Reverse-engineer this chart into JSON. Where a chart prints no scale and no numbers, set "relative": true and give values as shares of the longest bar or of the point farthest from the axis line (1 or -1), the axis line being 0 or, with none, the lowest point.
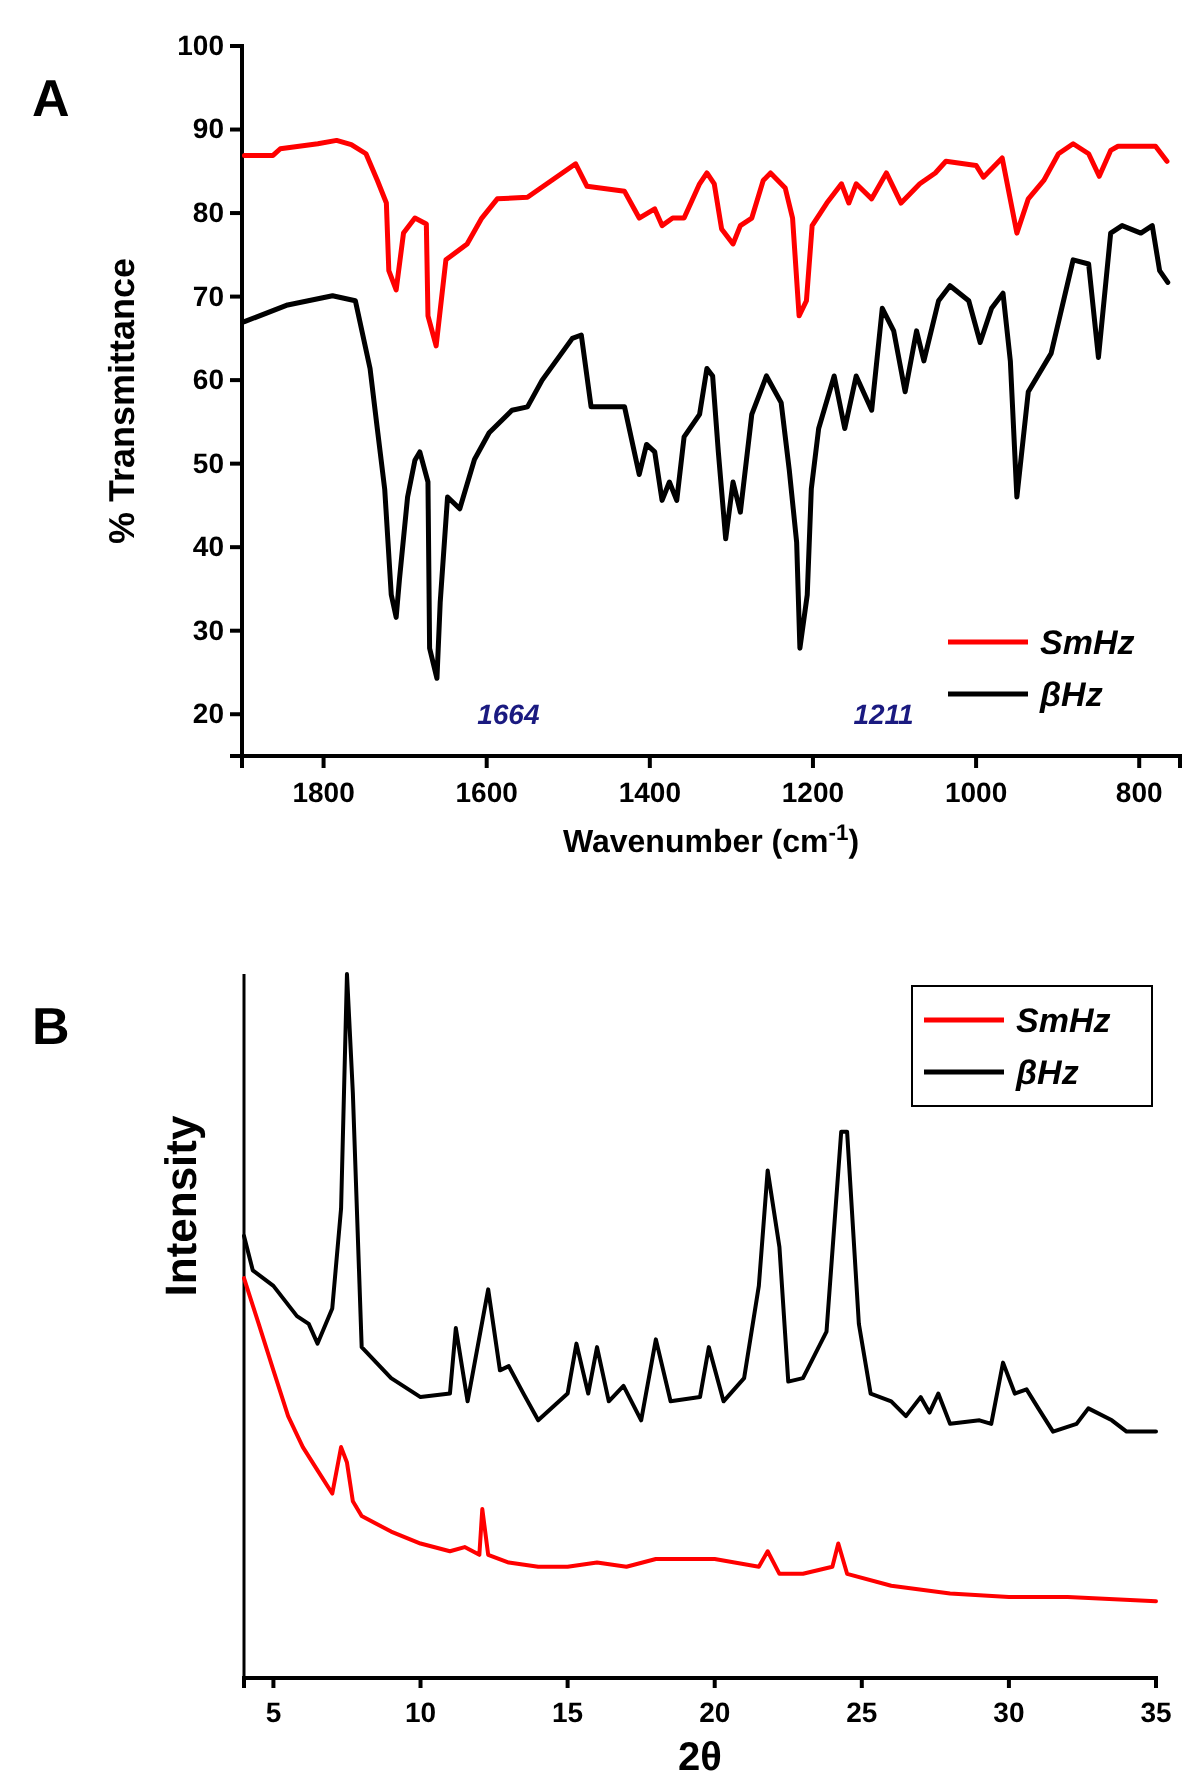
{
  "chart_data": [
    {
      "type": "line",
      "title": "A",
      "xlabel": "Wavenumber (cm$^{-1}$)",
      "ylabel": "% Transmittance",
      "xlim": [
        1900,
        750
      ],
      "xticks": [
        1800,
        1600,
        1400,
        1200,
        1000,
        800
      ],
      "ylim": [
        15,
        100
      ],
      "yticks": [
        20,
        30,
        40,
        50,
        60,
        70,
        80,
        90,
        100
      ],
      "legend": "bottom right",
      "series": [
        {
          "name": "SmHz",
          "color": "#ff0000",
          "x": [
            1897,
            1862,
            1853,
            1807,
            1784,
            1766,
            1748,
            1734,
            1723,
            1720,
            1711,
            1702,
            1688,
            1674,
            1672,
            1662,
            1650,
            1624,
            1606,
            1587,
            1550,
            1491,
            1477,
            1431,
            1413,
            1394,
            1385,
            1372,
            1358,
            1339,
            1330,
            1321,
            1312,
            1298,
            1289,
            1275,
            1261,
            1252,
            1234,
            1225,
            1217,
            1208,
            1201,
            1183,
            1165,
            1156,
            1147,
            1128,
            1110,
            1092,
            1069,
            1050,
            1037,
            1000,
            991,
            968,
            950,
            936,
            917,
            899,
            881,
            862,
            849,
            835,
            826,
            780,
            766
          ],
          "values": [
            86.9,
            86.9,
            87.7,
            88.3,
            88.7,
            88.2,
            87.1,
            83.9,
            81.2,
            73.1,
            70.8,
            77.6,
            79.4,
            78.7,
            67.7,
            64.1,
            74.4,
            76.3,
            79.4,
            81.7,
            81.9,
            85.9,
            83.2,
            82.6,
            79.4,
            80.5,
            78.5,
            79.4,
            79.4,
            83.5,
            84.8,
            83.5,
            78.1,
            76.3,
            78.5,
            79.4,
            83.9,
            84.8,
            83.0,
            79.4,
            67.7,
            69.5,
            78.5,
            81.2,
            83.5,
            81.2,
            83.5,
            81.7,
            84.8,
            81.2,
            83.5,
            84.8,
            86.2,
            85.7,
            84.3,
            86.6,
            77.6,
            81.7,
            83.9,
            87.1,
            88.3,
            87.1,
            84.4,
            87.5,
            88.0,
            88.0,
            86.2
          ]
        },
        {
          "name": "βHz",
          "color": "#000000",
          "x": [
            1897,
            1844,
            1789,
            1761,
            1743,
            1734,
            1725,
            1717,
            1711,
            1707,
            1697,
            1688,
            1682,
            1672,
            1670,
            1661,
            1657,
            1648,
            1633,
            1615,
            1597,
            1569,
            1550,
            1532,
            1495,
            1484,
            1472,
            1431,
            1413,
            1404,
            1394,
            1385,
            1376,
            1367,
            1358,
            1339,
            1330,
            1323,
            1316,
            1307,
            1298,
            1289,
            1275,
            1257,
            1239,
            1229,
            1220,
            1216,
            1207,
            1202,
            1193,
            1174,
            1161,
            1147,
            1128,
            1115,
            1101,
            1087,
            1073,
            1064,
            1046,
            1032,
            1009,
            995,
            981,
            967,
            958,
            950,
            936,
            908,
            881,
            862,
            850,
            835,
            821,
            798,
            784,
            775,
            765
          ],
          "values": [
            67.0,
            69.0,
            70.1,
            69.5,
            61.4,
            54.1,
            46.9,
            34.3,
            31.6,
            36.1,
            46.0,
            50.4,
            51.4,
            47.8,
            27.9,
            24.3,
            33.4,
            46.0,
            44.6,
            50.5,
            53.7,
            56.4,
            56.8,
            60.0,
            65.0,
            65.4,
            56.8,
            56.8,
            48.7,
            52.3,
            51.4,
            45.6,
            47.8,
            45.6,
            53.2,
            55.9,
            61.4,
            60.5,
            51.4,
            41.0,
            47.8,
            44.2,
            55.9,
            60.5,
            57.3,
            49.2,
            40.6,
            27.9,
            34.3,
            47.0,
            54.2,
            60.5,
            54.2,
            60.5,
            56.4,
            68.6,
            65.9,
            58.6,
            65.9,
            62.3,
            69.5,
            71.3,
            69.5,
            64.5,
            68.6,
            70.4,
            62.3,
            46.0,
            58.6,
            63.2,
            74.4,
            73.9,
            62.7,
            77.6,
            78.5,
            77.6,
            78.5,
            73.1,
            71.7
          ]
        }
      ],
      "annotations": [
        "1664",
        "1211"
      ]
    },
    {
      "type": "line",
      "title": "B",
      "xlabel": "2θ",
      "ylabel": "Intensity",
      "relative": true,
      "xlim": [
        4,
        35
      ],
      "xticks": [
        5,
        10,
        15,
        20,
        25,
        30,
        35
      ],
      "legend": "top right",
      "series": [
        {
          "name": "SmHz",
          "color": "#ff0000",
          "x": [
            4,
            4.5,
            5,
            5.5,
            6,
            6.5,
            7,
            7.3,
            7.5,
            7.7,
            8,
            9,
            10,
            11,
            11.5,
            12,
            12.1,
            12.3,
            13,
            14,
            15,
            16,
            17,
            18,
            20,
            21.5,
            21.8,
            22.2,
            23,
            24,
            24.2,
            24.5,
            26,
            28,
            30,
            32,
            35
          ],
          "values": [
            0.568,
            0.503,
            0.437,
            0.372,
            0.328,
            0.295,
            0.262,
            0.328,
            0.306,
            0.251,
            0.23,
            0.208,
            0.191,
            0.18,
            0.186,
            0.175,
            0.24,
            0.175,
            0.164,
            0.158,
            0.158,
            0.164,
            0.158,
            0.169,
            0.169,
            0.158,
            0.18,
            0.148,
            0.148,
            0.158,
            0.191,
            0.148,
            0.131,
            0.12,
            0.115,
            0.115,
            0.109
          ]
        },
        {
          "name": "βHz",
          "color": "#000000",
          "x": [
            4,
            4.3,
            5,
            5.8,
            6.2,
            6.5,
            7,
            7.3,
            7.5,
            7.7,
            8,
            9,
            10,
            11,
            11.2,
            11.6,
            12.3,
            12.7,
            13,
            13.5,
            14,
            15,
            15.3,
            15.7,
            16,
            16.4,
            16.9,
            17.5,
            18,
            18.5,
            19.5,
            19.8,
            20.3,
            21,
            21.5,
            21.8,
            22.2,
            22.5,
            23,
            23.8,
            24.3,
            24.5,
            24.9,
            25.3,
            26,
            26.5,
            27,
            27.3,
            27.6,
            28,
            29,
            29.4,
            29.8,
            30.2,
            30.6,
            31,
            31.5,
            32.3,
            32.7,
            33.5,
            34,
            35
          ],
          "values": [
            0.628,
            0.579,
            0.557,
            0.514,
            0.503,
            0.475,
            0.525,
            0.667,
            1.0,
            0.831,
            0.47,
            0.426,
            0.399,
            0.404,
            0.497,
            0.393,
            0.552,
            0.437,
            0.443,
            0.404,
            0.366,
            0.404,
            0.475,
            0.404,
            0.47,
            0.393,
            0.415,
            0.366,
            0.481,
            0.393,
            0.399,
            0.47,
            0.393,
            0.426,
            0.557,
            0.721,
            0.612,
            0.421,
            0.426,
            0.492,
            0.776,
            0.776,
            0.503,
            0.404,
            0.393,
            0.372,
            0.399,
            0.377,
            0.404,
            0.361,
            0.366,
            0.361,
            0.448,
            0.404,
            0.41,
            0.383,
            0.35,
            0.361,
            0.383,
            0.366,
            0.35,
            0.35
          ]
        }
      ]
    }
  ]
}
